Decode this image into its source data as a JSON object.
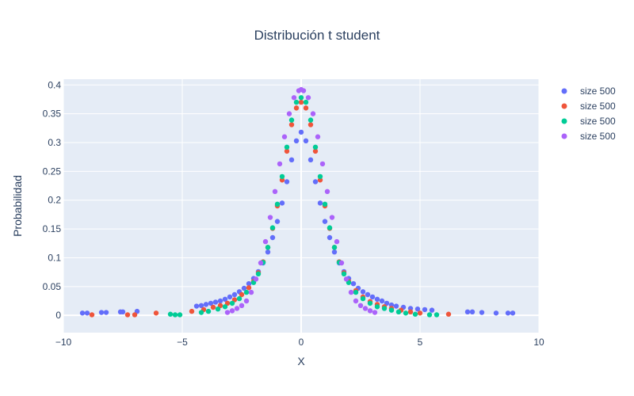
{
  "chart_data": {
    "type": "scatter",
    "title": "Distribución t student",
    "xlabel": "X",
    "ylabel": "Probabilidad",
    "xlim": [
      -10,
      10
    ],
    "ylim": [
      -0.03,
      0.41
    ],
    "x_ticks": [
      -10,
      -5,
      0,
      5,
      10
    ],
    "x_tick_labels": [
      "−10",
      "−5",
      "0",
      "5",
      "10"
    ],
    "y_ticks": [
      0,
      0.05,
      0.1,
      0.15,
      0.2,
      0.25,
      0.3,
      0.35,
      0.4
    ],
    "y_tick_labels": [
      "0",
      "0.05",
      "0.1",
      "0.15",
      "0.2",
      "0.25",
      "0.3",
      "0.35",
      "0.4"
    ],
    "grid": true,
    "legend_position": "right",
    "background_color": "#e5ecf6",
    "series": [
      {
        "name": "size 500",
        "color": "#636efa",
        "x": [
          -9.2,
          -9.0,
          -8.4,
          -8.2,
          -7.6,
          -7.5,
          -6.9,
          -4.4,
          -4.2,
          -4.0,
          -3.8,
          -3.6,
          -3.4,
          -3.2,
          -3.0,
          -2.8,
          -2.6,
          -2.4,
          -2.2,
          -2.0,
          -1.8,
          -1.6,
          -1.4,
          -1.2,
          -1.0,
          -0.8,
          -0.6,
          -0.4,
          -0.2,
          0.0,
          0.2,
          0.4,
          0.6,
          0.8,
          1.0,
          1.2,
          1.4,
          1.6,
          1.8,
          2.0,
          2.2,
          2.4,
          2.6,
          2.8,
          3.0,
          3.2,
          3.4,
          3.6,
          3.8,
          4.0,
          4.3,
          4.6,
          4.9,
          5.2,
          5.5,
          7.0,
          7.2,
          7.6,
          8.2,
          8.7,
          8.9
        ],
        "y": [
          0.004,
          0.004,
          0.005,
          0.005,
          0.006,
          0.006,
          0.007,
          0.016,
          0.017,
          0.019,
          0.021,
          0.023,
          0.025,
          0.028,
          0.032,
          0.036,
          0.041,
          0.047,
          0.055,
          0.064,
          0.076,
          0.091,
          0.11,
          0.135,
          0.163,
          0.195,
          0.232,
          0.27,
          0.303,
          0.318,
          0.303,
          0.27,
          0.232,
          0.195,
          0.163,
          0.135,
          0.11,
          0.091,
          0.076,
          0.064,
          0.055,
          0.047,
          0.041,
          0.036,
          0.032,
          0.028,
          0.025,
          0.021,
          0.018,
          0.016,
          0.014,
          0.012,
          0.011,
          0.01,
          0.009,
          0.006,
          0.006,
          0.005,
          0.004,
          0.004,
          0.004
        ]
      },
      {
        "name": "size 500",
        "color": "#ef553b",
        "x": [
          -8.8,
          -7.3,
          -7.0,
          -6.1,
          -4.6,
          -4.1,
          -3.7,
          -3.4,
          -3.1,
          -2.8,
          -2.5,
          -2.2,
          -2.0,
          -1.8,
          -1.6,
          -1.4,
          -1.2,
          -1.0,
          -0.8,
          -0.6,
          -0.4,
          -0.2,
          0.0,
          0.2,
          0.4,
          0.6,
          0.8,
          1.0,
          1.2,
          1.4,
          1.6,
          1.8,
          2.0,
          2.3,
          2.6,
          2.9,
          3.2,
          3.5,
          3.8,
          4.2,
          4.6,
          5.0,
          6.2
        ],
        "y": [
          0.001,
          0.001,
          0.001,
          0.004,
          0.007,
          0.01,
          0.014,
          0.017,
          0.021,
          0.027,
          0.036,
          0.048,
          0.059,
          0.074,
          0.093,
          0.118,
          0.151,
          0.19,
          0.235,
          0.285,
          0.331,
          0.36,
          0.37,
          0.36,
          0.331,
          0.285,
          0.235,
          0.19,
          0.151,
          0.118,
          0.093,
          0.074,
          0.059,
          0.043,
          0.032,
          0.024,
          0.019,
          0.015,
          0.012,
          0.009,
          0.006,
          0.004,
          0.002
        ]
      },
      {
        "name": "size 500",
        "color": "#00cc96",
        "x": [
          -5.5,
          -5.3,
          -5.1,
          -4.2,
          -3.9,
          -3.5,
          -3.2,
          -2.9,
          -2.6,
          -2.3,
          -2.0,
          -1.8,
          -1.6,
          -1.4,
          -1.2,
          -1.0,
          -0.8,
          -0.6,
          -0.4,
          -0.2,
          0.0,
          0.2,
          0.4,
          0.6,
          0.8,
          1.0,
          1.2,
          1.4,
          1.6,
          1.8,
          2.0,
          2.3,
          2.6,
          2.9,
          3.2,
          3.5,
          3.8,
          4.1,
          4.4,
          4.8,
          5.4,
          5.7
        ],
        "y": [
          0.002,
          0.001,
          0.001,
          0.005,
          0.007,
          0.011,
          0.015,
          0.021,
          0.029,
          0.04,
          0.057,
          0.072,
          0.092,
          0.118,
          0.152,
          0.193,
          0.241,
          0.292,
          0.339,
          0.37,
          0.378,
          0.37,
          0.339,
          0.292,
          0.241,
          0.193,
          0.152,
          0.118,
          0.092,
          0.072,
          0.057,
          0.04,
          0.029,
          0.021,
          0.015,
          0.012,
          0.009,
          0.006,
          0.004,
          0.002,
          0.001,
          0.001
        ]
      },
      {
        "name": "size 500",
        "color": "#ab63fa",
        "x": [
          -3.1,
          -2.9,
          -2.7,
          -2.5,
          -2.3,
          -2.1,
          -1.9,
          -1.7,
          -1.5,
          -1.3,
          -1.1,
          -0.9,
          -0.7,
          -0.5,
          -0.3,
          -0.1,
          0.0,
          0.1,
          0.3,
          0.5,
          0.7,
          0.9,
          1.1,
          1.3,
          1.5,
          1.7,
          1.9,
          2.1,
          2.3,
          2.5,
          2.7,
          2.9,
          3.1
        ],
        "y": [
          0.005,
          0.008,
          0.012,
          0.017,
          0.025,
          0.04,
          0.063,
          0.091,
          0.128,
          0.17,
          0.215,
          0.263,
          0.31,
          0.35,
          0.378,
          0.39,
          0.392,
          0.39,
          0.378,
          0.35,
          0.31,
          0.263,
          0.215,
          0.17,
          0.128,
          0.091,
          0.063,
          0.04,
          0.025,
          0.017,
          0.012,
          0.008,
          0.005
        ]
      }
    ]
  }
}
